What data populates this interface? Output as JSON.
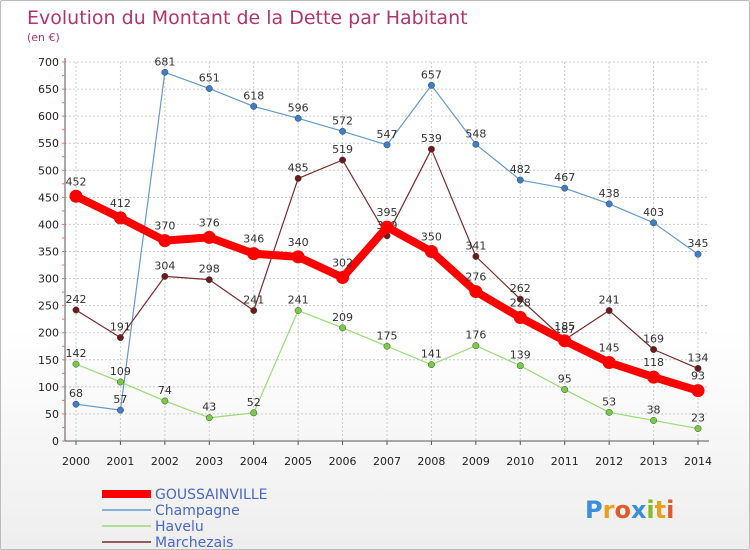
{
  "chart_data": {
    "type": "line",
    "title": "Evolution du Montant de la Dette par Habitant",
    "subtitle": "(en €)",
    "xlabel": "",
    "ylabel": "",
    "categories": [
      "2000",
      "2001",
      "2002",
      "2003",
      "2004",
      "2005",
      "2006",
      "2007",
      "2008",
      "2009",
      "2010",
      "2011",
      "2012",
      "2013",
      "2014"
    ],
    "ylim": [
      0,
      700
    ],
    "yticks": [
      0,
      50,
      100,
      150,
      200,
      250,
      300,
      350,
      400,
      450,
      500,
      550,
      600,
      650,
      700
    ],
    "grid": true,
    "legend_position": "bottom-left",
    "series": [
      {
        "name": "Champagne",
        "color": "#6699cc",
        "marker": "#3d7fc7",
        "values": [
          68,
          57,
          681,
          651,
          618,
          596,
          572,
          547,
          657,
          548,
          482,
          467,
          438,
          403,
          345
        ]
      },
      {
        "name": "Havelu",
        "color": "#99dd77",
        "marker": "#77cc44",
        "values": [
          142,
          109,
          74,
          43,
          52,
          241,
          209,
          175,
          141,
          176,
          139,
          95,
          53,
          38,
          23
        ]
      },
      {
        "name": "Marchezais",
        "color": "#7a2a2a",
        "marker": "#6b1a1a",
        "values": [
          242,
          191,
          304,
          298,
          241,
          485,
          519,
          379,
          539,
          341,
          262,
          187,
          241,
          169,
          134
        ]
      },
      {
        "name": "GOUSSAINVILLE",
        "color": "#ff0000",
        "marker": "#ff0000",
        "values": [
          452,
          412,
          370,
          376,
          346,
          340,
          302,
          395,
          350,
          276,
          228,
          185,
          145,
          118,
          93
        ]
      }
    ]
  },
  "legend_order": [
    "GOUSSAINVILLE",
    "Champagne",
    "Havelu",
    "Marchezais"
  ],
  "logo": {
    "text": "Proxiti"
  }
}
